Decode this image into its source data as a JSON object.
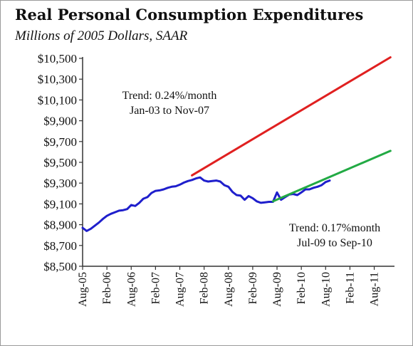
{
  "chart_data": {
    "type": "line",
    "title": "Real Personal Consumption Expenditures",
    "subtitle": "Millions of 2005 Dollars, SAAR",
    "xlabel": "",
    "ylabel": "",
    "ylim": [
      8500,
      10500
    ],
    "y_ticks": [
      "$8,500",
      "$8,700",
      "$8,900",
      "$9,100",
      "$9,300",
      "$9,500",
      "$9,700",
      "$9,900",
      "$10,100",
      "$10,300",
      "$10,500"
    ],
    "y_tick_values": [
      8500,
      8700,
      8900,
      9100,
      9300,
      9500,
      9700,
      9900,
      10100,
      10300,
      10500
    ],
    "x_ticks": [
      "Aug-05",
      "Feb-06",
      "Aug-06",
      "Feb-07",
      "Aug-07",
      "Feb-08",
      "Aug-08",
      "Feb-09",
      "Aug-09",
      "Feb-10",
      "Aug-10",
      "Feb-11",
      "Aug-11"
    ],
    "grid": false,
    "legend": "none",
    "series": [
      {
        "color": "#1f1fcc",
        "x": [
          "Aug-05",
          "Sep-05",
          "Oct-05",
          "Nov-05",
          "Dec-05",
          "Jan-06",
          "Feb-06",
          "Mar-06",
          "Apr-06",
          "May-06",
          "Jun-06",
          "Jul-06",
          "Aug-06",
          "Sep-06",
          "Oct-06",
          "Nov-06",
          "Dec-06",
          "Jan-07",
          "Feb-07",
          "Mar-07",
          "Apr-07",
          "May-07",
          "Jun-07",
          "Jul-07",
          "Aug-07",
          "Sep-07",
          "Oct-07",
          "Nov-07",
          "Dec-07",
          "Jan-08",
          "Feb-08",
          "Mar-08",
          "Apr-08",
          "May-08",
          "Jun-08",
          "Jul-08",
          "Aug-08",
          "Sep-08",
          "Oct-08",
          "Nov-08",
          "Dec-08",
          "Jan-09",
          "Feb-09",
          "Mar-09",
          "Apr-09",
          "May-09",
          "Jun-09",
          "Jul-09",
          "Aug-09",
          "Sep-09",
          "Oct-09",
          "Nov-09",
          "Dec-09",
          "Jan-10",
          "Feb-10",
          "Mar-10",
          "Apr-10",
          "May-10",
          "Jun-10",
          "Jul-10",
          "Aug-10",
          "Sep-10"
        ],
        "values": [
          8870,
          8840,
          8860,
          8890,
          8920,
          8955,
          8985,
          9005,
          9020,
          9035,
          9040,
          9050,
          9090,
          9080,
          9110,
          9150,
          9165,
          9205,
          9225,
          9230,
          9240,
          9255,
          9265,
          9270,
          9285,
          9305,
          9320,
          9330,
          9345,
          9355,
          9325,
          9315,
          9320,
          9325,
          9315,
          9280,
          9265,
          9215,
          9185,
          9180,
          9140,
          9175,
          9155,
          9125,
          9110,
          9115,
          9120,
          9120,
          9210,
          9140,
          9165,
          9190,
          9195,
          9185,
          9210,
          9240,
          9240,
          9255,
          9265,
          9280,
          9310,
          9325
        ]
      },
      {
        "color": "#e02020",
        "x": [
          "Nov-07",
          "Dec-11"
        ],
        "values": [
          9375,
          10510
        ]
      },
      {
        "color": "#22aa44",
        "x": [
          "Jul-09",
          "Dec-11"
        ],
        "values": [
          9125,
          9610
        ]
      }
    ],
    "annotations": [
      {
        "lines": [
          "Trend:  0.24%/month",
          "Jan-03 to Nov-07"
        ]
      },
      {
        "lines": [
          "Trend:  0.17%month",
          "Jul-09 to Sep-10"
        ]
      }
    ]
  }
}
